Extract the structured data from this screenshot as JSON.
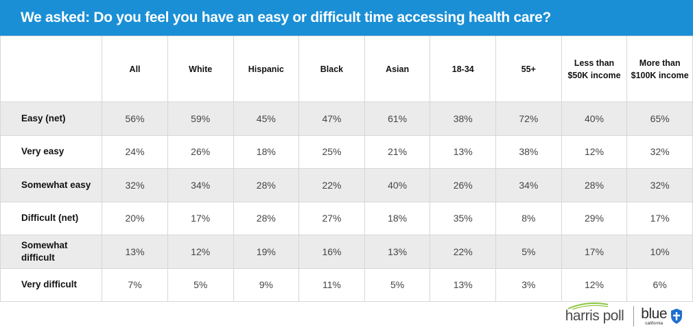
{
  "header": {
    "title": "We asked:  Do you feel you have an easy or difficult time accessing health care?"
  },
  "chart_data": {
    "type": "table",
    "title": "We asked:  Do you feel you have an easy or difficult time accessing health care?",
    "columns": [
      "",
      "All",
      "White",
      "Hispanic",
      "Black",
      "Asian",
      "18-34",
      "55+",
      "Less than $50K income",
      "More than $100K income"
    ],
    "rows": [
      {
        "label": "Easy (net)",
        "values": [
          "56%",
          "59%",
          "45%",
          "47%",
          "61%",
          "38%",
          "72%",
          "40%",
          "65%"
        ]
      },
      {
        "label": "Very easy",
        "values": [
          "24%",
          "26%",
          "18%",
          "25%",
          "21%",
          "13%",
          "38%",
          "12%",
          "32%"
        ]
      },
      {
        "label": "Somewhat easy",
        "values": [
          "32%",
          "34%",
          "28%",
          "22%",
          "40%",
          "26%",
          "34%",
          "28%",
          "32%"
        ]
      },
      {
        "label": "Difficult (net)",
        "values": [
          "20%",
          "17%",
          "28%",
          "27%",
          "18%",
          "35%",
          "8%",
          "29%",
          "17%"
        ]
      },
      {
        "label": "Somewhat difficult",
        "values": [
          "13%",
          "12%",
          "19%",
          "16%",
          "13%",
          "22%",
          "5%",
          "17%",
          "10%"
        ]
      },
      {
        "label": "Very difficult",
        "values": [
          "7%",
          "5%",
          "9%",
          "11%",
          "5%",
          "13%",
          "3%",
          "12%",
          "6%"
        ]
      }
    ]
  },
  "logos": {
    "harris": "harris poll",
    "blue": "blue",
    "blue_sub": "california",
    "harris_icon": "swoosh-icon",
    "blue_icon": "shield-icon"
  },
  "colors": {
    "title_bg": "#1a8fd6",
    "row_shade": "#ebebeb",
    "harris_green": "#8dc63f",
    "shield_blue": "#1f6fcf"
  }
}
